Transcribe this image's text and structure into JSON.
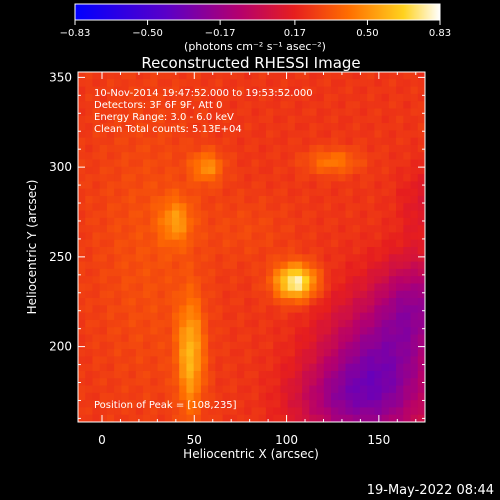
{
  "chart_data": {
    "type": "heatmap",
    "title": "Reconstructed RHESSI Image",
    "xlabel": "Heliocentric X (arcsec)",
    "ylabel": "Heliocentric Y (arcsec)",
    "xlim": [
      -13,
      175
    ],
    "ylim": [
      158,
      353
    ],
    "xticks": [
      0,
      50,
      100,
      150
    ],
    "yticks": [
      200,
      250,
      300,
      350
    ],
    "grid": false,
    "colorbar": {
      "position": "top",
      "range": [
        -0.83,
        0.83
      ],
      "tick_values": [
        -0.83,
        -0.5,
        -0.17,
        0.17,
        0.5,
        0.83
      ],
      "tick_labels": [
        "−0.83",
        "−0.50",
        "−0.17",
        "0.17",
        "0.50",
        "0.83"
      ],
      "units_label": "(photons cm⁻² s⁻¹ asec⁻²)"
    },
    "annotations": [
      "10-Nov-2014 19:47:52.000 to 19:53:52.000",
      "Detectors: 3F 6F 9F, Att 0",
      "Energy Range: 3.0 - 6.0 keV",
      "Clean     Total counts: 5.13E+04"
    ],
    "peak_label": "Position of Peak = [108,235]",
    "peak": {
      "x": 108,
      "y": 235,
      "value": 0.83
    },
    "background_level": 0.24,
    "sources": [
      {
        "x": 105,
        "y": 236,
        "sx": 8,
        "sy": 7,
        "amp": 0.55
      },
      {
        "x": 48,
        "y": 195,
        "sx": 5,
        "sy": 22,
        "amp": 0.34
      },
      {
        "x": 40,
        "y": 270,
        "sx": 6,
        "sy": 9,
        "amp": 0.23
      },
      {
        "x": 57,
        "y": 300,
        "sx": 6,
        "sy": 6,
        "amp": 0.24
      },
      {
        "x": 125,
        "y": 303,
        "sx": 10,
        "sy": 5,
        "amp": 0.2
      },
      {
        "x": 25,
        "y": 255,
        "sx": 22,
        "sy": 60,
        "amp": 0.08
      },
      {
        "x": 80,
        "y": 265,
        "sx": 18,
        "sy": 14,
        "amp": 0.05
      },
      {
        "x": 150,
        "y": 185,
        "sx": 22,
        "sy": 28,
        "amp": -0.52
      },
      {
        "x": 170,
        "y": 225,
        "sx": 14,
        "sy": 18,
        "amp": -0.32
      },
      {
        "x": 175,
        "y": 280,
        "sx": 10,
        "sy": 14,
        "amp": -0.12
      },
      {
        "x": 125,
        "y": 170,
        "sx": 18,
        "sy": 14,
        "amp": -0.2
      }
    ]
  },
  "footer": {
    "date": "19-May-2022 08:44"
  }
}
